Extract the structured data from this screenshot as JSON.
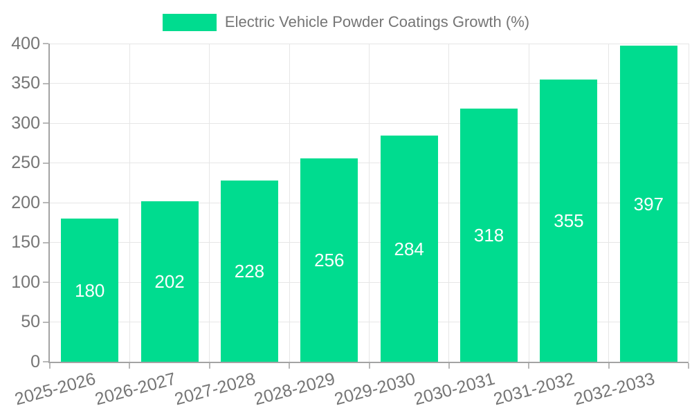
{
  "chart_data": {
    "type": "bar",
    "title": "Electric Vehicle Powder Coatings Growth (%)",
    "categories": [
      "2025-2026",
      "2026-2027",
      "2027-2028",
      "2028-2029",
      "2029-2030",
      "2030-2031",
      "2031-2032",
      "2032-2033"
    ],
    "values": [
      180,
      202,
      228,
      256,
      284,
      318,
      355,
      397
    ],
    "xlabel": "",
    "ylabel": "",
    "ylim": [
      0,
      400
    ],
    "ytick_step": 50,
    "grid": true,
    "legend_position": "top-center",
    "bar_labels_shown": true,
    "bar_label_position": "inside-center"
  },
  "style": {
    "bar_color": "#00DC8F",
    "bar_label_color": "#FFFFFF",
    "axis_text_color": "#757575",
    "gridline_color": "#E6E6E6",
    "axis_line_color": "#A3A3A3",
    "tick_color": "#B8B8B8",
    "background_color": "#FFFFFF"
  }
}
